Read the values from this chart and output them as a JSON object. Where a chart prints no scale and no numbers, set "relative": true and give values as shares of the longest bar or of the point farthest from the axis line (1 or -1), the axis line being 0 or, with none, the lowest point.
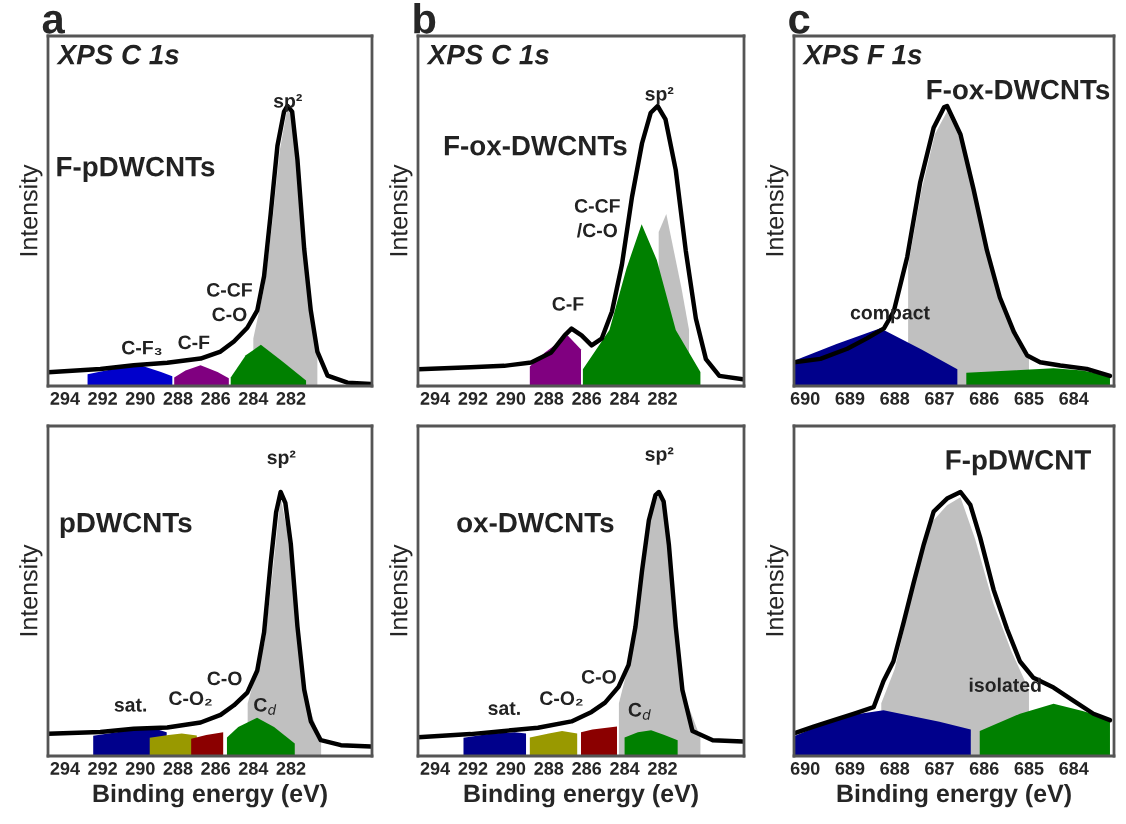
{
  "chart_data": [
    {
      "type": "line",
      "relative": true,
      "title": "a",
      "ylabel": "Intensity",
      "xlim": [
        294.9,
        277.7
      ],
      "xticks": [
        294,
        292,
        290,
        288,
        286,
        284,
        282
      ],
      "tick_labels": "x",
      "annotations": [
        "XPS C 1s",
        "F-pDWCNTs",
        "sp²",
        "C-CF",
        "C-O",
        "C-F",
        "C-F₃"
      ],
      "series": [
        {
          "type": "area",
          "color": "#c0c0c0",
          "x": [
            284.0,
            283.4,
            283.0,
            282.6,
            282.2,
            281.9,
            281.3,
            280.6
          ],
          "values": [
            0.17,
            0.36,
            0.58,
            0.84,
            0.99,
            0.96,
            0.46,
            0.11
          ]
        },
        {
          "type": "area",
          "color": "#0000cc",
          "x": [
            292.8,
            291.5,
            290.0,
            288.9,
            288.3
          ],
          "values": [
            0.042,
            0.06,
            0.074,
            0.05,
            0.035
          ]
        },
        {
          "type": "area",
          "color": "#800080",
          "x": [
            288.2,
            287.6,
            286.8,
            285.9,
            285.3
          ],
          "values": [
            0.03,
            0.055,
            0.074,
            0.05,
            0.028
          ]
        },
        {
          "type": "area",
          "color": "#008000",
          "x": [
            285.2,
            284.4,
            283.6,
            282.5,
            281.2
          ],
          "values": [
            0.03,
            0.11,
            0.147,
            0.09,
            0.02
          ]
        },
        {
          "color": "#000000",
          "x": [
            294.89,
            292.12,
            290.35,
            288.57,
            286.8,
            285.74,
            285.03,
            284.32,
            283.79,
            283.43,
            283.08,
            282.72,
            282.37,
            282.19,
            281.94,
            281.66,
            281.3,
            280.95,
            280.6,
            280.06,
            279.0,
            277.76
          ],
          "values": [
            0.049,
            0.061,
            0.074,
            0.083,
            0.098,
            0.123,
            0.159,
            0.208,
            0.27,
            0.392,
            0.613,
            0.858,
            0.98,
            1.0,
            0.98,
            0.81,
            0.49,
            0.27,
            0.123,
            0.037,
            0.012,
            0.007
          ]
        }
      ]
    },
    {
      "type": "line",
      "relative": true,
      "title": "b",
      "ylabel": "Intensity",
      "xlim": [
        294.9,
        277.7
      ],
      "xticks": [
        294,
        292,
        290,
        288,
        286,
        284,
        282
      ],
      "tick_labels": "x",
      "annotations": [
        "XPS C 1s",
        "F-ox-DWCNTs",
        "sp²",
        "C-CF",
        "/C-O",
        "C-F"
      ],
      "series": [
        {
          "type": "area",
          "color": "#c0c0c0",
          "x": [
            282.2,
            281.8,
            281.0,
            280.6
          ],
          "values": [
            0.55,
            0.614,
            0.35,
            0.2
          ]
        },
        {
          "type": "area",
          "color": "#800080",
          "x": [
            289.0,
            288.2,
            287.0,
            286.3
          ],
          "values": [
            0.07,
            0.12,
            0.18,
            0.13
          ]
        },
        {
          "type": "area",
          "color": "#008000",
          "x": [
            286.2,
            284.8,
            283.9,
            283.1,
            282.3,
            281.3,
            280.0
          ],
          "values": [
            0.06,
            0.2,
            0.42,
            0.578,
            0.45,
            0.2,
            0.05
          ]
        },
        {
          "color": "#000000",
          "x": [
            294.89,
            292.12,
            290.35,
            288.93,
            287.87,
            287.16,
            286.8,
            286.27,
            285.74,
            285.21,
            284.67,
            284.14,
            283.61,
            283.08,
            282.62,
            282.26,
            281.84,
            281.3,
            280.77,
            280.24,
            279.71,
            279.0,
            277.76
          ],
          "values": [
            0.06,
            0.067,
            0.072,
            0.084,
            0.12,
            0.181,
            0.205,
            0.181,
            0.145,
            0.169,
            0.265,
            0.434,
            0.675,
            0.867,
            0.976,
            1.0,
            0.952,
            0.771,
            0.482,
            0.241,
            0.096,
            0.036,
            0.024
          ]
        }
      ]
    },
    {
      "type": "line",
      "relative": true,
      "title": "c",
      "ylabel": "Intensity",
      "xlim": [
        690.25,
        683.1
      ],
      "xticks": [
        690,
        689,
        688,
        687,
        686,
        685,
        684
      ],
      "tick_labels": "x",
      "annotations": [
        "XPS F 1s",
        "F-ox-DWCNTs",
        "compact"
      ],
      "series": [
        {
          "type": "area",
          "color": "#c0c0c0",
          "x": [
            687.7,
            687.4,
            687.1,
            686.83,
            686.5,
            686.2,
            685.9,
            685.5,
            685.0
          ],
          "values": [
            0.43,
            0.7,
            0.9,
            0.98,
            0.87,
            0.67,
            0.46,
            0.26,
            0.1
          ]
        },
        {
          "type": "area",
          "color": "#00008b",
          "x": [
            690.25,
            689.3,
            688.32,
            687.4,
            686.6
          ],
          "values": [
            0.09,
            0.15,
            0.206,
            0.13,
            0.06
          ]
        },
        {
          "type": "area",
          "color": "#008000",
          "x": [
            686.4,
            685.3,
            684.45,
            683.8,
            683.19
          ],
          "values": [
            0.047,
            0.056,
            0.063,
            0.055,
            0.036
          ]
        },
        {
          "color": "#000000",
          "x": [
            690.25,
            689.66,
            689.06,
            688.62,
            688.24,
            688.02,
            687.72,
            687.43,
            687.13,
            686.9,
            686.83,
            686.53,
            686.24,
            685.94,
            685.65,
            685.34,
            685.04,
            684.75,
            684.3,
            683.71,
            683.19
          ],
          "values": [
            0.085,
            0.097,
            0.133,
            0.17,
            0.206,
            0.267,
            0.461,
            0.728,
            0.922,
            0.995,
            1.0,
            0.898,
            0.704,
            0.485,
            0.316,
            0.194,
            0.109,
            0.085,
            0.073,
            0.061,
            0.036
          ]
        }
      ]
    },
    {
      "type": "line",
      "relative": true,
      "xlabel": "Binding energy (eV)",
      "ylabel": "Intensity",
      "xlim": [
        294.9,
        277.7
      ],
      "xticks": [
        294,
        292,
        290,
        288,
        286,
        284,
        282
      ],
      "tick_labels": "x",
      "annotations": [
        "pDWCNTs",
        "sp²",
        "sat.",
        "C-O₂",
        "C-O",
        "C$_{d}$"
      ],
      "series": [
        {
          "type": "area",
          "color": "#c0c0c0",
          "x": [
            284.3,
            283.4,
            283.0,
            282.55,
            282.0,
            281.3,
            280.4
          ],
          "values": [
            0.2,
            0.43,
            0.68,
            0.98,
            0.78,
            0.24,
            0.055
          ]
        },
        {
          "type": "area",
          "color": "#00008b",
          "x": [
            292.5,
            290.8,
            289.3,
            288.6
          ],
          "values": [
            0.077,
            0.095,
            0.105,
            0.09
          ]
        },
        {
          "type": "area",
          "color": "#999900",
          "x": [
            289.5,
            288.5,
            287.8,
            287.0
          ],
          "values": [
            0.069,
            0.08,
            0.085,
            0.078
          ]
        },
        {
          "type": "area",
          "color": "#8b0000",
          "x": [
            287.3,
            286.5,
            285.6
          ],
          "values": [
            0.065,
            0.08,
            0.09
          ]
        },
        {
          "type": "area",
          "color": "#008000",
          "x": [
            285.4,
            284.8,
            283.8,
            282.9,
            281.8
          ],
          "values": [
            0.07,
            0.11,
            0.145,
            0.11,
            0.047
          ]
        },
        {
          "color": "#000000",
          "x": [
            294.89,
            292.12,
            290.35,
            288.57,
            286.8,
            285.74,
            285.03,
            284.32,
            283.79,
            283.43,
            283.08,
            282.79,
            282.55,
            282.3,
            282.01,
            281.66,
            281.3,
            280.95,
            280.42,
            279.35,
            277.75
          ],
          "values": [
            0.084,
            0.091,
            0.103,
            0.108,
            0.127,
            0.156,
            0.192,
            0.24,
            0.324,
            0.468,
            0.731,
            0.923,
            1.0,
            0.959,
            0.803,
            0.492,
            0.252,
            0.132,
            0.06,
            0.041,
            0.036
          ]
        }
      ]
    },
    {
      "type": "line",
      "relative": true,
      "xlabel": "Binding energy (eV)",
      "ylabel": "Intensity",
      "xlim": [
        294.9,
        277.7
      ],
      "xticks": [
        294,
        292,
        290,
        288,
        286,
        284,
        282
      ],
      "tick_labels": "x",
      "annotations": [
        "ox-DWCNTs",
        "sp²",
        "sat.",
        "C-O₂",
        "C-O",
        "C$_{d}$"
      ],
      "series": [
        {
          "type": "area",
          "color": "#c0c0c0",
          "x": [
            284.3,
            283.6,
            283.1,
            282.6,
            282.2,
            281.9,
            281.4,
            280.8,
            280.0
          ],
          "values": [
            0.2,
            0.4,
            0.68,
            0.93,
            0.99,
            0.95,
            0.55,
            0.22,
            0.07
          ]
        },
        {
          "type": "area",
          "color": "#00008b",
          "x": [
            292.5,
            291.0,
            289.8,
            289.2
          ],
          "values": [
            0.069,
            0.085,
            0.09,
            0.085
          ]
        },
        {
          "type": "area",
          "color": "#999900",
          "x": [
            289.0,
            288.0,
            287.3,
            286.5
          ],
          "values": [
            0.07,
            0.085,
            0.095,
            0.085
          ]
        },
        {
          "type": "area",
          "color": "#8b0000",
          "x": [
            286.3,
            285.7,
            284.4
          ],
          "values": [
            0.09,
            0.1,
            0.112
          ]
        },
        {
          "type": "area",
          "color": "#008000",
          "x": [
            284.0,
            283.3,
            282.6,
            281.9,
            281.2
          ],
          "values": [
            0.07,
            0.09,
            0.098,
            0.08,
            0.06
          ]
        },
        {
          "color": "#000000",
          "x": [
            294.89,
            292.12,
            290.35,
            288.57,
            286.8,
            285.74,
            285.03,
            284.32,
            283.79,
            283.43,
            283.08,
            282.72,
            282.37,
            282.19,
            281.94,
            281.66,
            281.3,
            280.95,
            280.42,
            279.35,
            277.76
          ],
          "values": [
            0.071,
            0.083,
            0.095,
            0.107,
            0.131,
            0.167,
            0.202,
            0.262,
            0.345,
            0.488,
            0.702,
            0.893,
            0.988,
            1.0,
            0.964,
            0.798,
            0.488,
            0.25,
            0.095,
            0.06,
            0.055
          ]
        }
      ]
    },
    {
      "type": "line",
      "relative": true,
      "xlabel": "Binding energy (eV)",
      "ylabel": "Intensity",
      "xlim": [
        690.25,
        683.1
      ],
      "xticks": [
        690,
        689,
        688,
        687,
        686,
        685,
        684
      ],
      "tick_labels": "x",
      "annotations": [
        "F-pDWCNT",
        "isolated"
      ],
      "series": [
        {
          "type": "area",
          "color": "#c0c0c0",
          "x": [
            688.3,
            688.0,
            687.6,
            687.2,
            686.83,
            686.53,
            686.2,
            685.8,
            685.4,
            685.0
          ],
          "values": [
            0.2,
            0.33,
            0.62,
            0.88,
            0.95,
            0.98,
            0.82,
            0.58,
            0.4,
            0.25
          ]
        },
        {
          "type": "area",
          "color": "#00008b",
          "x": [
            690.25,
            689.2,
            688.25,
            687.0,
            686.3
          ],
          "values": [
            0.075,
            0.15,
            0.173,
            0.13,
            0.1
          ]
        },
        {
          "type": "area",
          "color": "#008000",
          "x": [
            686.1,
            685.2,
            684.45,
            683.8,
            683.19
          ],
          "values": [
            0.095,
            0.16,
            0.198,
            0.17,
            0.14
          ]
        },
        {
          "color": "#000000",
          "x": [
            690.25,
            689.81,
            689.36,
            688.92,
            688.47,
            688.25,
            688.03,
            687.8,
            687.58,
            687.35,
            687.13,
            686.83,
            686.53,
            686.31,
            686.09,
            685.79,
            685.49,
            685.2,
            684.9,
            684.45,
            684.01,
            683.56,
            683.19
          ],
          "values": [
            0.086,
            0.111,
            0.136,
            0.16,
            0.185,
            0.284,
            0.358,
            0.506,
            0.654,
            0.802,
            0.926,
            0.975,
            1.0,
            0.951,
            0.827,
            0.63,
            0.481,
            0.358,
            0.296,
            0.259,
            0.21,
            0.16,
            0.136
          ]
        }
      ]
    }
  ]
}
